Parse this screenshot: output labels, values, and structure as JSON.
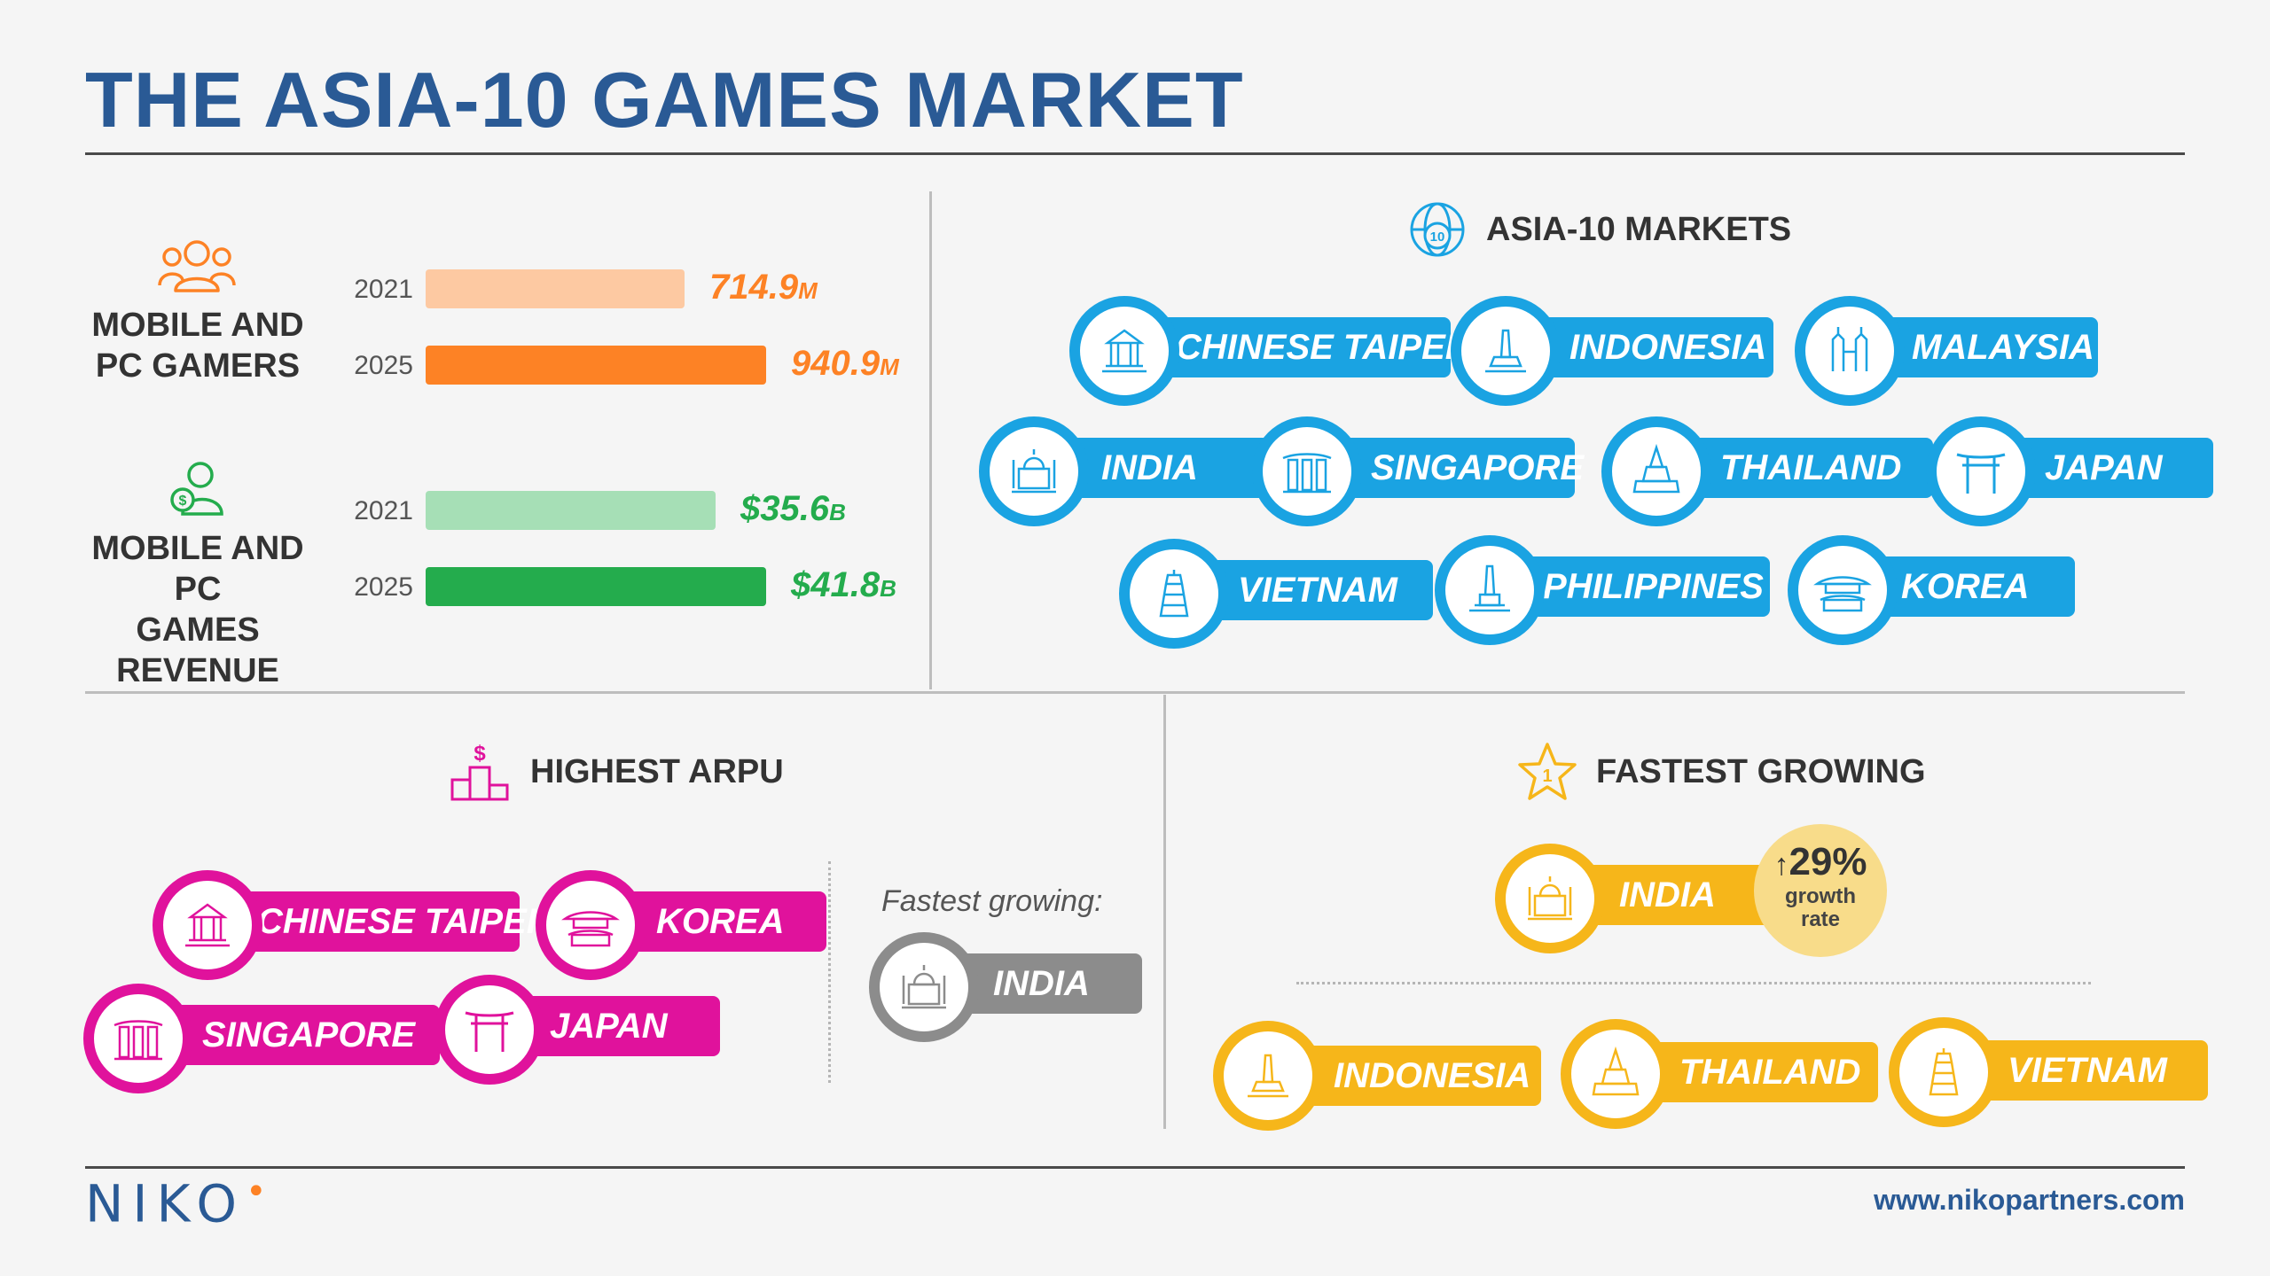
{
  "title": "THE ASIA-10 GAMES MARKET",
  "colors": {
    "navy": "#2a5a95",
    "orange": "#fd8225",
    "orange_light": "#fdc9a2",
    "green": "#24ac4d",
    "green_light": "#a6dfb6",
    "blue": "#1aa3e2",
    "pink": "#e0129c",
    "gold": "#f6b61a",
    "grey": "#8c8c8c"
  },
  "gamers": {
    "icon": "users-icon",
    "label_line1": "MOBILE AND",
    "label_line2": "PC GAMERS",
    "rows": [
      {
        "year": "2021",
        "value": 714.9,
        "value_text": "714.9",
        "unit": "M"
      },
      {
        "year": "2025",
        "value": 940.9,
        "value_text": "940.9",
        "unit": "M"
      }
    ]
  },
  "revenue": {
    "icon": "money-icon",
    "label_line1": "MOBILE AND PC",
    "label_line2": "GAMES REVENUE",
    "rows": [
      {
        "year": "2021",
        "value": 35.6,
        "value_text": "$35.6",
        "unit": "B"
      },
      {
        "year": "2025",
        "value": 41.8,
        "value_text": "$41.8",
        "unit": "B"
      }
    ]
  },
  "markets": {
    "icon": "globe-10-icon",
    "heading": "ASIA-10 MARKETS",
    "items": [
      "CHINESE TAIPEI",
      "INDONESIA",
      "MALAYSIA",
      "INDIA",
      "SINGAPORE",
      "THAILAND",
      "JAPAN",
      "VIETNAM",
      "PHILIPPINES",
      "KOREA"
    ]
  },
  "arpu": {
    "icon": "podium-dollar-icon",
    "heading": "HIGHEST ARPU",
    "items": [
      "CHINESE TAIPEI",
      "KOREA",
      "SINGAPORE",
      "JAPAN"
    ],
    "fastest_label": "Fastest growing:",
    "fastest_item": "INDIA"
  },
  "fastest": {
    "icon": "star-1-icon",
    "heading": "FASTEST GROWING",
    "top_item": "INDIA",
    "growth_value": "29%",
    "growth_label_1": "growth",
    "growth_label_2": "rate",
    "items": [
      "INDONESIA",
      "THAILAND",
      "VIETNAM"
    ]
  },
  "footer": {
    "logo": "NIKO",
    "url": "www.nikopartners.com"
  }
}
